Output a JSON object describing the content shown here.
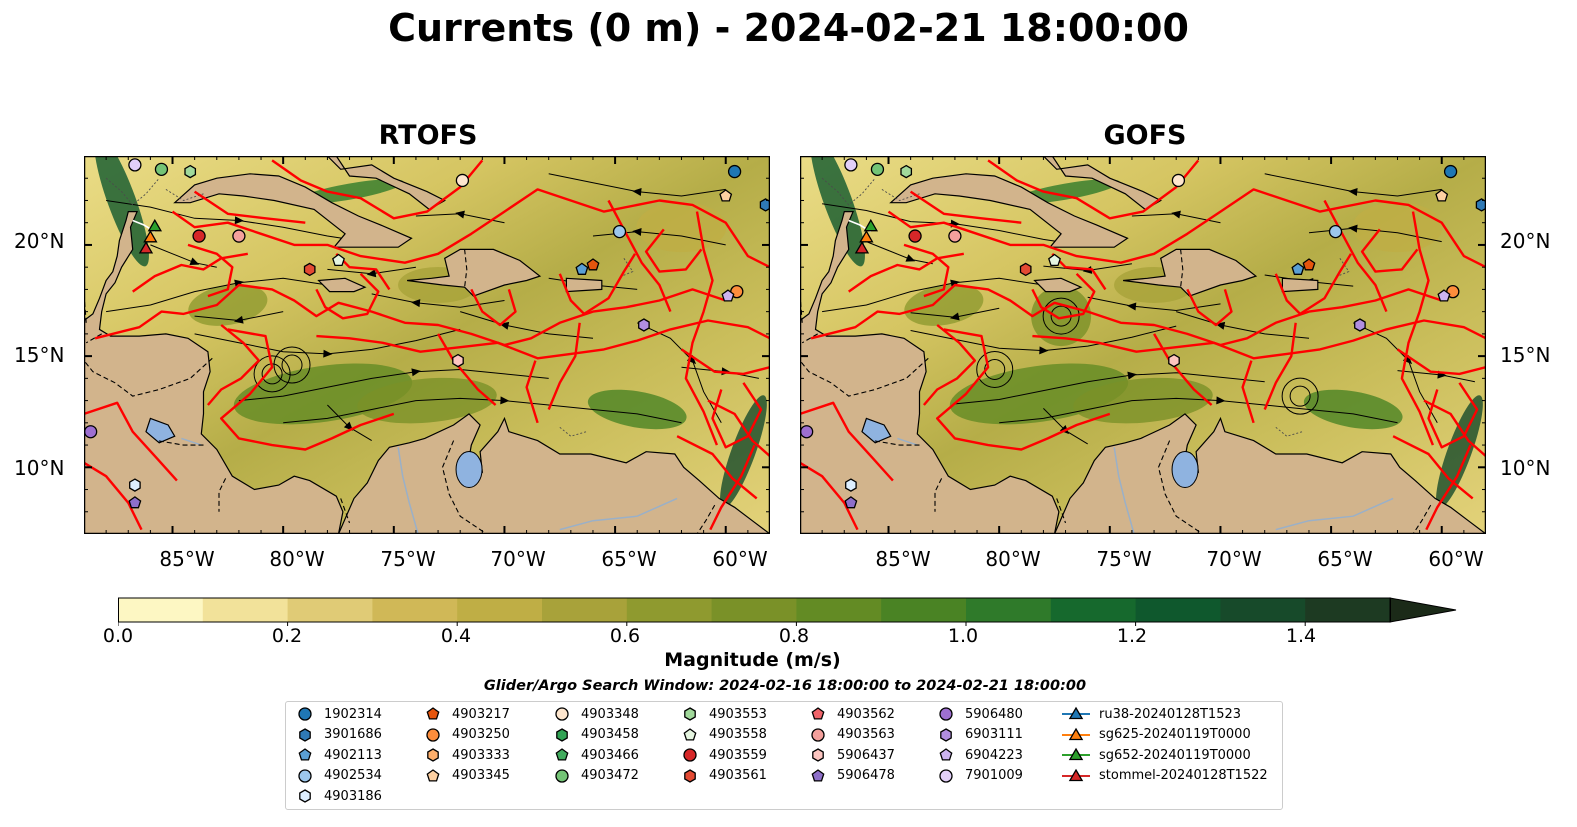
{
  "title": "Currents (0 m) - 2024-02-21 18:00:00",
  "panels": [
    {
      "title": "RTOFS"
    },
    {
      "title": "GOFS"
    }
  ],
  "colors": {
    "land": "#d2b48c",
    "streamline": "#000000",
    "boundary": "#ff0000",
    "water_body": "#8fb3e0",
    "river": "#9ab0c8"
  },
  "chart_data": {
    "type": "map",
    "projection": "lat-lon",
    "lon_range": [
      -89,
      -58
    ],
    "lat_range": [
      7,
      24
    ],
    "xticks": [
      "85°W",
      "80°W",
      "75°W",
      "70°W",
      "65°W",
      "60°W"
    ],
    "yticks": [
      "20°N",
      "15°N",
      "10°N"
    ],
    "field": "current magnitude",
    "colorbar": {
      "label": "Magnitude (m/s)",
      "ticks": [
        "0.0",
        "0.2",
        "0.4",
        "0.6",
        "0.8",
        "1.0",
        "1.2",
        "1.4"
      ],
      "range": [
        0,
        1.5
      ],
      "step": 0.1,
      "extend": "max",
      "colors": [
        "#fdf7c3",
        "#f2e29a",
        "#e0cb76",
        "#d0b857",
        "#bfae45",
        "#a8a23a",
        "#8f9a2f",
        "#7a9128",
        "#638b24",
        "#4a8324",
        "#2f7a2a",
        "#16692d",
        "#0f582d",
        "#174a2a",
        "#1d3a22",
        "#1b2a18"
      ]
    },
    "search_window": "Glider/Argo Search Window: 2024-02-16 18:00:00 to 2024-02-21 18:00:00",
    "legend_entries": [
      {
        "label": "1902314",
        "marker": "circle",
        "color": "#1f77b4"
      },
      {
        "label": "3901686",
        "marker": "hexagon",
        "color": "#2f79b5"
      },
      {
        "label": "4902113",
        "marker": "pentagon",
        "color": "#5a9fd4"
      },
      {
        "label": "4902534",
        "marker": "circle",
        "color": "#9cc7ec"
      },
      {
        "label": "4903186",
        "marker": "hexagon",
        "color": "#ddeeff"
      },
      {
        "label": "4903217",
        "marker": "pentagon",
        "color": "#e6550d"
      },
      {
        "label": "4903250",
        "marker": "circle",
        "color": "#fd8d3c"
      },
      {
        "label": "4903333",
        "marker": "hexagon",
        "color": "#fdae6b"
      },
      {
        "label": "4903345",
        "marker": "pentagon",
        "color": "#fdd0a2"
      },
      {
        "label": "4903348",
        "marker": "circle",
        "color": "#fee6ce"
      },
      {
        "label": "4903458",
        "marker": "hexagon",
        "color": "#31a354"
      },
      {
        "label": "4903466",
        "marker": "pentagon",
        "color": "#41ab5d"
      },
      {
        "label": "4903472",
        "marker": "circle",
        "color": "#74c476"
      },
      {
        "label": "4903553",
        "marker": "hexagon",
        "color": "#a1d99b"
      },
      {
        "label": "4903558",
        "marker": "pentagon",
        "color": "#e5f5e0"
      },
      {
        "label": "4903559",
        "marker": "circle",
        "color": "#d62728"
      },
      {
        "label": "4903561",
        "marker": "hexagon",
        "color": "#e34a33"
      },
      {
        "label": "4903562",
        "marker": "pentagon",
        "color": "#f0646a"
      },
      {
        "label": "4903563",
        "marker": "circle",
        "color": "#f4a09c"
      },
      {
        "label": "5906437",
        "marker": "hexagon",
        "color": "#fcc5c0"
      },
      {
        "label": "5906478",
        "marker": "pentagon",
        "color": "#8e6fc9"
      },
      {
        "label": "5906480",
        "marker": "circle",
        "color": "#9e6fd0"
      },
      {
        "label": "6903111",
        "marker": "hexagon",
        "color": "#b18ee0"
      },
      {
        "label": "6904223",
        "marker": "pentagon",
        "color": "#cdb4f0"
      },
      {
        "label": "7901009",
        "marker": "circle",
        "color": "#e2cff8"
      },
      {
        "label": "ru38-20240128T1523",
        "marker": "triangle-line",
        "color": "#1f77b4"
      },
      {
        "label": "sg625-20240119T0000",
        "marker": "triangle-line",
        "color": "#ff7f0e"
      },
      {
        "label": "sg652-20240119T0000",
        "marker": "triangle-line",
        "color": "#2ca02c"
      },
      {
        "label": "stommel-20240128T1522",
        "marker": "triangle-line",
        "color": "#d62728"
      }
    ],
    "floats": [
      {
        "id": "1902314",
        "lon": -59.6,
        "lat": 23.3
      },
      {
        "id": "4902534",
        "lon": -64.8,
        "lat": 20.6
      },
      {
        "id": "4903348",
        "lon": -71.9,
        "lat": 22.9
      },
      {
        "id": "4903472",
        "lon": -85.5,
        "lat": 23.4
      },
      {
        "id": "4903553",
        "lon": -84.2,
        "lat": 23.3
      },
      {
        "id": "7901009",
        "lon": -86.7,
        "lat": 23.6
      },
      {
        "id": "4903559",
        "lon": -83.8,
        "lat": 20.4
      },
      {
        "id": "4903563",
        "lon": -82.0,
        "lat": 20.4
      },
      {
        "id": "4903561",
        "lon": -78.8,
        "lat": 18.9
      },
      {
        "id": "4903558",
        "lon": -77.5,
        "lat": 19.3
      },
      {
        "id": "4903217",
        "lon": -66.0,
        "lat": 19.1
      },
      {
        "id": "4902113",
        "lon": -66.5,
        "lat": 18.9
      },
      {
        "id": "4903345",
        "lon": -60.0,
        "lat": 22.2
      },
      {
        "id": "3901686",
        "lon": -58.2,
        "lat": 21.8
      },
      {
        "id": "4903250",
        "lon": -59.5,
        "lat": 17.9
      },
      {
        "id": "6904223",
        "lon": -59.9,
        "lat": 17.7
      },
      {
        "id": "6903111",
        "lon": -63.7,
        "lat": 16.4
      },
      {
        "id": "5906437",
        "lon": -72.1,
        "lat": 14.8
      },
      {
        "id": "5906480",
        "lon": -88.7,
        "lat": 11.6
      },
      {
        "id": "4903186",
        "lon": -86.7,
        "lat": 9.2
      },
      {
        "id": "5906478",
        "lon": -86.7,
        "lat": 8.4
      }
    ],
    "gliders": [
      {
        "id": "sg652-20240119T0000",
        "lon": -85.8,
        "lat": 20.8
      },
      {
        "id": "sg625-20240119T0000",
        "lon": -86.0,
        "lat": 20.3
      },
      {
        "id": "stommel-20240128T1522",
        "lon": -86.2,
        "lat": 19.8
      }
    ]
  }
}
